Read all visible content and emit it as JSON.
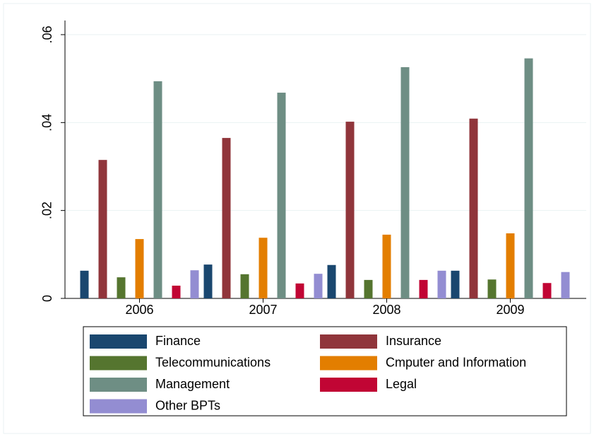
{
  "chart_data": {
    "type": "bar",
    "categories": [
      "2006",
      "2007",
      "2008",
      "2009"
    ],
    "series": [
      {
        "name": "Finance",
        "color": "#1a476f",
        "values": [
          0.0063,
          0.0077,
          0.0076,
          0.0063
        ]
      },
      {
        "name": "Insurance",
        "color": "#90353b",
        "values": [
          0.0315,
          0.0365,
          0.0402,
          0.0409
        ]
      },
      {
        "name": "Telecommunications",
        "color": "#55752f",
        "values": [
          0.0048,
          0.0055,
          0.0042,
          0.0043
        ]
      },
      {
        "name": "Cmputer and Information",
        "color": "#e37e00",
        "values": [
          0.0135,
          0.0138,
          0.0145,
          0.0148
        ]
      },
      {
        "name": "Management",
        "color": "#6e8e84",
        "values": [
          0.0494,
          0.0468,
          0.0526,
          0.0546
        ]
      },
      {
        "name": "Legal",
        "color": "#c10534",
        "values": [
          0.0029,
          0.0034,
          0.0042,
          0.0035
        ]
      },
      {
        "name": "Other BPTs",
        "color": "#938dd2",
        "values": [
          0.0064,
          0.0056,
          0.0063,
          0.006
        ]
      }
    ],
    "ylim": [
      0,
      0.06
    ],
    "yticks": [
      0,
      {
        "value": 0.02,
        "label": ".02"
      },
      {
        "value": 0.04,
        "label": ".04"
      },
      {
        "value": 0.06,
        "label": ".06"
      }
    ],
    "grid": true,
    "legend": "bottom"
  }
}
